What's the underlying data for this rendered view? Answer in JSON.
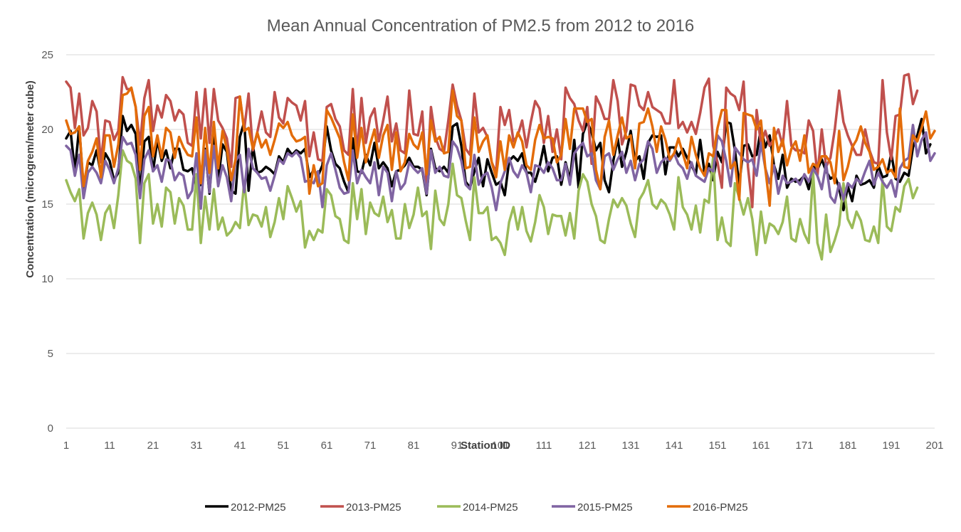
{
  "chart_data": {
    "type": "line",
    "title": "Mean Annual Concentration of PM2.5 from 2012 to 2016",
    "xlabel": "Station ID",
    "ylabel": "Concentration (microgrem/meter cube)",
    "ylim": [
      0,
      25
    ],
    "y_ticks": [
      0,
      5,
      10,
      15,
      20,
      25
    ],
    "x_ticks": [
      1,
      11,
      21,
      31,
      41,
      51,
      61,
      71,
      81,
      91,
      101,
      111,
      121,
      131,
      141,
      151,
      161,
      171,
      181,
      191,
      201
    ],
    "x_tick_labels": [
      "1",
      "11",
      "21",
      "31",
      "41",
      "51",
      "61",
      "71",
      "81",
      "91",
      "101",
      "111",
      "121",
      "131",
      "141",
      "151",
      "161",
      "171",
      "181",
      "191",
      "201"
    ],
    "xlim": [
      1,
      201
    ],
    "grid": "horizontal",
    "legend_position": "bottom",
    "series": [
      {
        "name": "2012-PM25",
        "color": "#000000",
        "values": [
          19.4,
          19.9,
          17.2,
          20.2,
          16.0,
          17.8,
          17.6,
          18.6,
          17.0,
          18.4,
          17.9,
          16.6,
          17.1,
          20.9,
          19.9,
          20.3,
          19.7,
          15.8,
          19.2,
          19.5,
          17.2,
          19.3,
          17.9,
          18.6,
          17.4,
          18.7,
          18.7,
          17.3,
          17.2,
          17.4,
          16.1,
          16.3,
          18.7,
          15.7,
          19.8,
          16.6,
          19.0,
          18.5,
          15.9,
          15.7,
          19.5,
          20.5,
          15.9,
          18.9,
          17.1,
          17.2,
          17.5,
          17.3,
          17.0,
          18.2,
          17.8,
          18.7,
          18.3,
          18.6,
          18.4,
          18.7,
          16.8,
          17.3,
          16.9,
          17.6,
          20.2,
          18.6,
          17.7,
          17.4,
          16.5,
          15.8,
          19.4,
          17.2,
          17.1,
          18.3,
          17.6,
          19.1,
          17.4,
          17.8,
          17.4,
          16.2,
          17.2,
          17.3,
          17.6,
          18.1,
          17.5,
          17.5,
          17.3,
          15.6,
          18.7,
          17.4,
          17.2,
          17.5,
          17.1,
          20.2,
          20.4,
          18.9,
          16.5,
          16.1,
          17.2,
          18.1,
          16.2,
          18.0,
          17.1,
          16.3,
          16.5,
          15.6,
          17.9,
          18.2,
          17.9,
          18.4,
          17.1,
          17.1,
          16.5,
          17.5,
          18.9,
          17.2,
          18.1,
          18.2,
          16.3,
          17.8,
          16.6,
          19.3,
          16.1,
          19.7,
          20.5,
          19.8,
          18.6,
          19.1,
          16.6,
          15.8,
          17.9,
          19.4,
          17.5,
          18.5,
          19.9,
          17.9,
          18.2,
          16.7,
          19.1,
          19.6,
          19.5,
          19.6,
          17.0,
          18.8,
          18.8,
          18.2,
          18.7,
          18.1,
          17.6,
          17.0,
          19.3,
          17.1,
          17.7,
          16.6,
          18.5,
          17.8,
          20.5,
          20.4,
          18.6,
          16.3,
          18.9,
          19.0,
          18.2,
          18.3,
          20.1,
          18.8,
          19.6,
          17.6,
          16.7,
          18.3,
          16.1,
          16.7,
          16.5,
          16.6,
          16.9,
          16.0,
          17.5,
          17.3,
          18.0,
          17.2,
          16.7,
          16.9,
          16.1,
          14.6,
          16.2,
          15.2,
          16.9,
          16.3,
          16.4,
          16.6,
          16.1,
          17.6,
          16.8,
          16.9,
          18.4,
          16.7,
          16.5,
          17.1,
          16.9,
          18.8,
          19.6,
          20.7,
          18.4,
          19.0
        ]
      },
      {
        "name": "2013-PM25",
        "color": "#c0504d",
        "values": [
          23.2,
          22.8,
          20.1,
          22.4,
          19.6,
          20.1,
          21.9,
          21.2,
          17.8,
          20.6,
          20.5,
          19.3,
          19.9,
          23.5,
          22.7,
          22.7,
          21.5,
          19.0,
          22.1,
          23.3,
          19.9,
          21.6,
          20.8,
          22.3,
          21.9,
          20.6,
          21.3,
          21.0,
          19.1,
          18.9,
          22.5,
          19.4,
          22.7,
          19.1,
          22.7,
          20.6,
          20.1,
          19.4,
          17.5,
          22.1,
          22.2,
          20.0,
          22.4,
          18.6,
          19.8,
          21.2,
          19.8,
          19.5,
          22.5,
          20.8,
          20.4,
          22.1,
          21.8,
          21.6,
          20.6,
          21.9,
          18.2,
          19.8,
          18.0,
          17.9,
          21.5,
          21.7,
          20.7,
          20.2,
          18.6,
          18.3,
          22.7,
          18.4,
          22.1,
          19.1,
          20.8,
          21.4,
          19.2,
          20.6,
          22.2,
          19.2,
          20.4,
          18.6,
          18.4,
          22.6,
          19.7,
          19.6,
          21.2,
          16.4,
          21.5,
          19.5,
          18.7,
          18.5,
          20.6,
          23.0,
          21.6,
          20.6,
          18.7,
          18.3,
          22.4,
          19.8,
          20.1,
          19.5,
          17.8,
          17.1,
          21.5,
          20.3,
          21.3,
          19.2,
          19.6,
          20.6,
          18.8,
          20.5,
          21.9,
          21.4,
          19.1,
          20.9,
          18.5,
          20.0,
          18.0,
          22.8,
          22.1,
          21.7,
          20.6,
          19.9,
          21.5,
          17.7,
          22.2,
          21.6,
          20.7,
          20.7,
          23.3,
          21.9,
          19.0,
          19.9,
          23.0,
          22.9,
          21.6,
          21.3,
          22.5,
          21.5,
          21.3,
          21.1,
          20.4,
          20.4,
          23.3,
          20.1,
          20.5,
          19.8,
          20.5,
          19.7,
          21.1,
          22.8,
          23.4,
          18.9,
          17.8,
          16.1,
          22.8,
          22.4,
          22.2,
          21.3,
          23.2,
          17.5,
          14.8,
          21.3,
          19.0,
          19.9,
          18.9,
          19.4,
          20.0,
          18.9,
          21.9,
          18.9,
          18.6,
          18.6,
          18.4,
          20.6,
          19.9,
          16.9,
          20.0,
          17.5,
          18.1,
          20.0,
          22.6,
          20.5,
          19.6,
          18.9,
          18.3,
          18.3,
          20.0,
          18.6,
          17.8,
          17.7,
          23.3,
          19.8,
          18.0,
          20.9,
          21.0,
          23.6,
          23.7,
          21.7,
          22.6
        ]
      },
      {
        "name": "2014-PM25",
        "color": "#9bbb59",
        "values": [
          16.6,
          15.8,
          15.2,
          16.0,
          12.7,
          14.4,
          15.1,
          14.3,
          12.6,
          14.4,
          14.9,
          13.4,
          15.6,
          18.6,
          17.9,
          17.7,
          16.7,
          12.4,
          16.4,
          17.0,
          13.7,
          15.0,
          13.5,
          16.1,
          15.8,
          13.7,
          15.4,
          14.9,
          13.3,
          13.3,
          17.0,
          12.4,
          15.5,
          13.3,
          16.0,
          13.3,
          14.1,
          12.9,
          13.2,
          13.8,
          13.4,
          16.5,
          13.6,
          14.3,
          14.2,
          13.5,
          14.8,
          12.8,
          13.8,
          15.4,
          14.0,
          16.2,
          15.4,
          14.5,
          15.2,
          12.1,
          13.2,
          12.6,
          13.3,
          13.1,
          16.0,
          15.6,
          14.2,
          14.0,
          12.6,
          12.4,
          16.4,
          14.0,
          16.0,
          13.0,
          15.1,
          14.4,
          14.2,
          15.5,
          13.8,
          14.6,
          12.7,
          12.7,
          15.0,
          13.4,
          14.3,
          16.1,
          14.2,
          14.5,
          12.0,
          15.9,
          14.0,
          13.6,
          15.0,
          17.7,
          15.6,
          15.4,
          13.9,
          12.6,
          16.8,
          14.4,
          14.4,
          14.8,
          12.6,
          12.8,
          12.4,
          11.6,
          13.8,
          14.8,
          13.3,
          14.8,
          13.2,
          12.5,
          13.8,
          15.6,
          14.8,
          13.0,
          14.3,
          14.2,
          14.2,
          12.9,
          14.4,
          12.7,
          15.9,
          17.0,
          16.5,
          15.0,
          14.2,
          12.6,
          12.4,
          14.0,
          15.3,
          14.8,
          15.4,
          14.9,
          13.7,
          12.8,
          15.3,
          15.8,
          16.6,
          15.0,
          14.7,
          15.3,
          15.0,
          14.3,
          13.3,
          16.8,
          14.8,
          14.3,
          13.3,
          14.9,
          13.1,
          15.3,
          15.1,
          18.2,
          12.6,
          14.1,
          12.5,
          12.2,
          16.4,
          15.4,
          14.3,
          15.4,
          14.0,
          11.6,
          14.5,
          12.4,
          13.7,
          13.5,
          13.0,
          13.8,
          15.5,
          12.7,
          12.5,
          14.0,
          13.0,
          12.4,
          17.1,
          12.4,
          11.3,
          14.3,
          11.8,
          12.6,
          13.6,
          16.4,
          14.0,
          13.4,
          14.5,
          13.9,
          12.6,
          12.5,
          13.5,
          12.4,
          16.6,
          13.5,
          13.2,
          14.8,
          14.5,
          16.2,
          16.7,
          15.4,
          16.1
        ]
      },
      {
        "name": "2015-PM25",
        "color": "#8064a2",
        "values": [
          18.9,
          18.6,
          16.9,
          18.3,
          15.4,
          17.1,
          17.5,
          17.1,
          16.4,
          17.9,
          17.3,
          16.4,
          17.4,
          19.5,
          19.0,
          19.1,
          18.3,
          15.4,
          18.0,
          18.6,
          17.2,
          17.6,
          16.5,
          18.0,
          17.9,
          16.6,
          17.1,
          16.9,
          15.4,
          15.9,
          18.4,
          14.7,
          18.6,
          15.8,
          18.9,
          16.2,
          17.6,
          16.8,
          15.2,
          17.9,
          18.3,
          15.8,
          18.7,
          17.4,
          17.1,
          16.7,
          16.8,
          15.9,
          16.9,
          18.0,
          17.7,
          18.4,
          18.2,
          18.5,
          18.1,
          16.5,
          16.6,
          16.4,
          17.2,
          14.8,
          17.6,
          18.4,
          17.3,
          16.1,
          15.7,
          15.8,
          18.6,
          16.4,
          17.3,
          16.8,
          16.4,
          17.8,
          15.6,
          17.5,
          17.1,
          15.2,
          17.2,
          16.0,
          16.4,
          17.8,
          17.4,
          17.1,
          17.4,
          15.7,
          18.6,
          17.1,
          17.5,
          16.9,
          16.8,
          19.2,
          18.8,
          17.9,
          16.3,
          16.0,
          18.3,
          16.3,
          16.9,
          17.1,
          16.1,
          14.6,
          16.4,
          17.2,
          18.1,
          17.2,
          16.8,
          17.6,
          17.1,
          15.8,
          17.6,
          17.5,
          17.1,
          17.8,
          17.4,
          16.6,
          16.6,
          17.7,
          16.3,
          18.4,
          18.8,
          19.1,
          18.2,
          18.4,
          16.6,
          16.0,
          18.2,
          18.4,
          17.3,
          18.0,
          18.5,
          17.1,
          17.9,
          16.6,
          17.7,
          18.0,
          19.2,
          18.7,
          17.1,
          17.8,
          18.1,
          17.9,
          18.4,
          17.7,
          17.4,
          16.7,
          17.8,
          16.9,
          16.7,
          16.5,
          17.4,
          17.2,
          19.6,
          19.2,
          17.9,
          16.2,
          18.8,
          18.4,
          18.0,
          17.8,
          18.0,
          16.9,
          19.1,
          17.4,
          16.4,
          17.6,
          15.7,
          16.9,
          16.4,
          16.5,
          16.7,
          16.3,
          17.0,
          16.5,
          17.4,
          16.9,
          16.0,
          17.7,
          15.5,
          15.1,
          16.4,
          15.3,
          16.4,
          16.1,
          16.7,
          16.4,
          17.2,
          17.9,
          16.3,
          17.1,
          16.5,
          16.1,
          16.6,
          15.5,
          17.4,
          17.9,
          18.1,
          20.3,
          18.2,
          19.3,
          19.8,
          17.9,
          18.4
        ]
      },
      {
        "name": "2016-PM25",
        "color": "#e36c09",
        "values": [
          20.6,
          19.7,
          19.8,
          20.2,
          16.2,
          17.9,
          18.5,
          19.4,
          16.8,
          19.6,
          19.6,
          17.5,
          19.0,
          22.3,
          22.4,
          22.8,
          21.5,
          17.3,
          20.9,
          21.5,
          18.2,
          19.6,
          18.1,
          20.1,
          19.8,
          18.1,
          19.5,
          18.8,
          18.3,
          18.2,
          20.8,
          16.4,
          20.1,
          17.1,
          20.5,
          17.4,
          19.9,
          18.7,
          16.6,
          18.0,
          22.2,
          19.9,
          20.1,
          18.7,
          19.8,
          18.8,
          19.3,
          18.3,
          19.3,
          20.4,
          20.1,
          20.5,
          19.6,
          19.2,
          19.3,
          19.5,
          15.7,
          17.6,
          16.2,
          16.4,
          21.3,
          20.8,
          20.1,
          19.4,
          17.8,
          16.6,
          21.0,
          18.1,
          20.1,
          17.8,
          19.0,
          20.0,
          18.1,
          19.6,
          20.3,
          17.3,
          19.8,
          17.2,
          17.8,
          19.7,
          19.0,
          18.7,
          19.8,
          17.0,
          20.6,
          19.2,
          19.5,
          18.4,
          18.5,
          22.6,
          20.9,
          20.6,
          17.4,
          17.5,
          20.8,
          18.5,
          19.2,
          19.6,
          17.8,
          16.8,
          19.2,
          17.3,
          19.6,
          18.8,
          19.8,
          19.2,
          17.6,
          17.3,
          19.3,
          20.3,
          19.4,
          19.5,
          19.4,
          17.8,
          18.3,
          20.7,
          18.7,
          21.4,
          21.4,
          21.4,
          20.5,
          20.7,
          17.3,
          16.0,
          19.5,
          20.6,
          18.3,
          19.6,
          20.8,
          19.4,
          19.6,
          17.4,
          20.4,
          20.5,
          21.4,
          20.2,
          18.5,
          20.2,
          19.3,
          18.0,
          18.4,
          19.4,
          18.4,
          17.4,
          19.5,
          18.3,
          17.4,
          16.9,
          18.4,
          18.2,
          20.1,
          21.3,
          21.3,
          17.4,
          17.8,
          15.3,
          21.1,
          21.0,
          20.9,
          20.0,
          20.6,
          17.4,
          14.9,
          20.1,
          18.5,
          19.3,
          17.6,
          18.7,
          19.2,
          17.9,
          19.6,
          17.1,
          17.7,
          17.5,
          18.2,
          18.2,
          17.8,
          16.4,
          19.9,
          16.6,
          17.5,
          18.8,
          19.3,
          20.2,
          19.1,
          18.5,
          17.3,
          17.5,
          18.0,
          17.1,
          17.3,
          16.8,
          21.4,
          17.5,
          17.4,
          19.6,
          19.2,
          20.1,
          21.2,
          19.4,
          19.9
        ]
      }
    ]
  }
}
